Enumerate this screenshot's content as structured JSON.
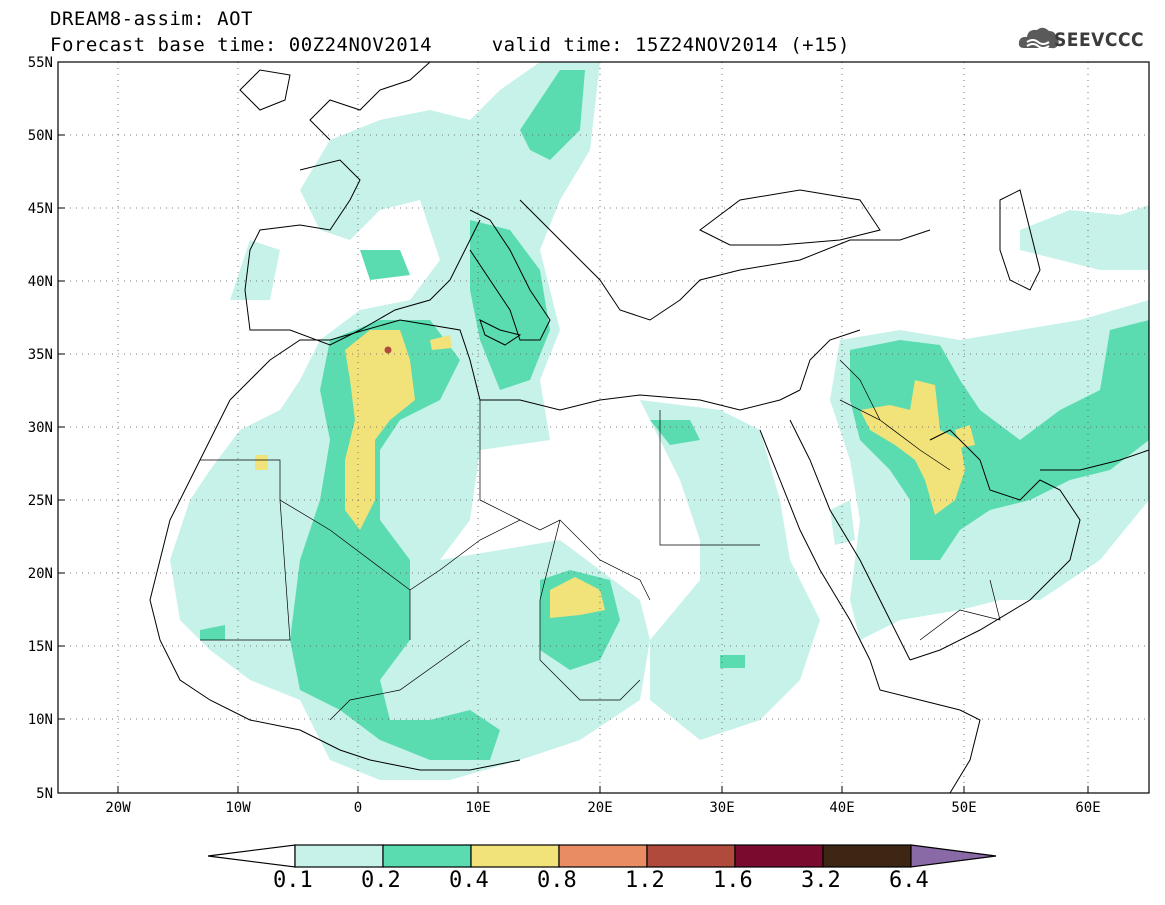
{
  "header": {
    "line1": "DREAM8-assim: AOT",
    "line2": "Forecast base time: 00Z24NOV2014     valid time: 15Z24NOV2014 (+15)"
  },
  "logo": {
    "text": "SEEVCCC",
    "icon": "cloud-logo-icon"
  },
  "map": {
    "lat_ticks": [
      "55N",
      "50N",
      "45N",
      "40N",
      "35N",
      "30N",
      "25N",
      "20N",
      "15N",
      "10N",
      "5N"
    ],
    "lon_ticks": [
      "20W",
      "10W",
      "0",
      "10E",
      "20E",
      "30E",
      "40E",
      "50E",
      "60E"
    ],
    "lon_range": [
      -25,
      65
    ],
    "lat_range": [
      5,
      55
    ],
    "grid": "dotted"
  },
  "colorbar": {
    "levels": [
      "0.1",
      "0.2",
      "0.4",
      "0.8",
      "1.2",
      "1.6",
      "3.2",
      "6.4"
    ],
    "colors": [
      "#ffffff",
      "#c6f2ea",
      "#5bdcb0",
      "#f2e27a",
      "#e98c63",
      "#b04a3c",
      "#7a0a2e",
      "#3d2714",
      "#8a6aa6"
    ]
  }
}
